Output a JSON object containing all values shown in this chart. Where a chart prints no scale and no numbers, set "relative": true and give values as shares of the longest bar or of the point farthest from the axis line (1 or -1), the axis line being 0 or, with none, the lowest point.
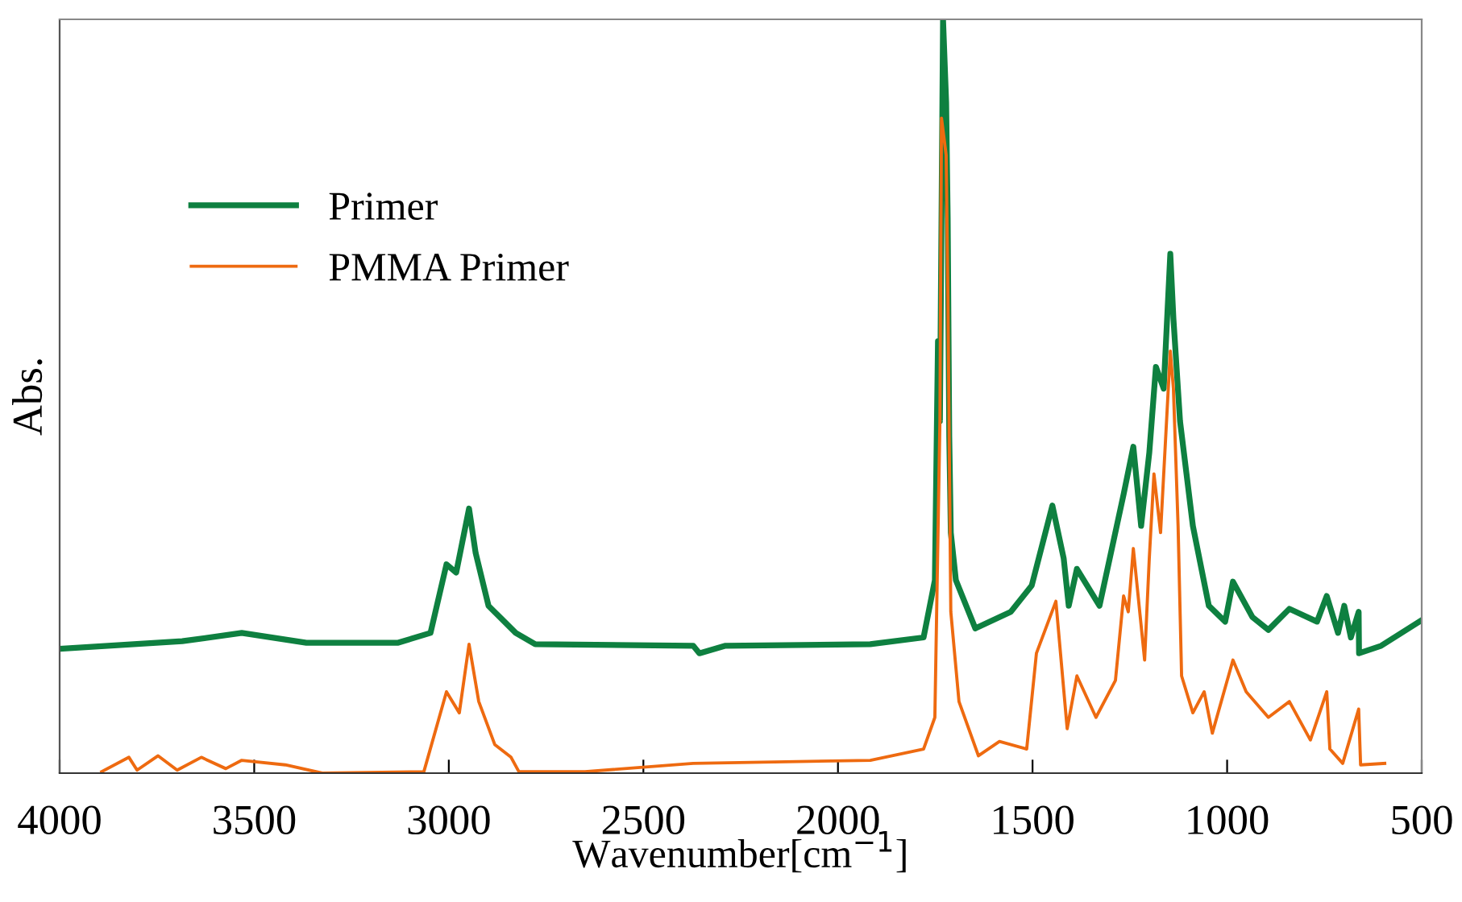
{
  "chart_data": {
    "type": "line",
    "xlabel": "Wavenumber[cm$^{−1}$]",
    "ylabel": "Abs.",
    "relative": true,
    "xlim": [
      4000,
      500
    ],
    "xticks": [
      4000,
      3500,
      3000,
      2500,
      2000,
      1500,
      1000,
      500
    ],
    "grid": false,
    "legend": "top left",
    "marker": "none",
    "line_style": "solid",
    "series": [
      {
        "name": "Primer",
        "color": "#0e8040",
        "x": [
          4000,
          3685,
          3532,
          3366,
          3130,
          3047,
          3006,
          2981,
          2948,
          2931,
          2898,
          2828,
          2778,
          2372,
          2356,
          2289,
          1917,
          1780,
          1751,
          1743,
          1738,
          1730,
          1722,
          1718,
          1714,
          1710,
          1697,
          1647,
          1556,
          1502,
          1449,
          1420,
          1407,
          1386,
          1328,
          1266,
          1241,
          1221,
          1200,
          1183,
          1163,
          1146,
          1138,
          1121,
          1088,
          1047,
          1005,
          985,
          935,
          894,
          840,
          769,
          744,
          715,
          699,
          682,
          662,
          661,
          604,
          500
        ],
        "values": [
          0.165,
          0.175,
          0.186,
          0.173,
          0.173,
          0.186,
          0.277,
          0.266,
          0.351,
          0.292,
          0.222,
          0.186,
          0.171,
          0.169,
          0.159,
          0.169,
          0.171,
          0.18,
          0.256,
          0.573,
          0.467,
          1.0,
          0.89,
          0.736,
          0.446,
          0.319,
          0.256,
          0.192,
          0.214,
          0.249,
          0.355,
          0.285,
          0.222,
          0.271,
          0.222,
          0.37,
          0.433,
          0.328,
          0.425,
          0.539,
          0.51,
          0.689,
          0.603,
          0.467,
          0.328,
          0.222,
          0.201,
          0.254,
          0.207,
          0.19,
          0.218,
          0.201,
          0.235,
          0.186,
          0.222,
          0.18,
          0.214,
          0.159,
          0.169,
          0.203
        ]
      },
      {
        "name": "PMMA Primer",
        "color": "#ee6a10",
        "x": [
          3892,
          3822,
          3801,
          3747,
          3698,
          3636,
          3573,
          3532,
          3420,
          3325,
          3064,
          3006,
          2973,
          2948,
          2923,
          2882,
          2840,
          2820,
          2650,
          2372,
          1917,
          1780,
          1751,
          1738,
          1734,
          1722,
          1718,
          1710,
          1689,
          1639,
          1585,
          1515,
          1490,
          1440,
          1411,
          1386,
          1337,
          1287,
          1266,
          1254,
          1241,
          1212,
          1200,
          1188,
          1171,
          1146,
          1138,
          1126,
          1117,
          1088,
          1059,
          1038,
          985,
          951,
          894,
          840,
          786,
          744,
          736,
          703,
          662,
          657,
          595
        ],
        "values": [
          0.002,
          0.021,
          0.004,
          0.023,
          0.004,
          0.021,
          0.006,
          0.017,
          0.011,
          0.0,
          0.002,
          0.108,
          0.08,
          0.171,
          0.095,
          0.038,
          0.021,
          0.002,
          0.002,
          0.013,
          0.017,
          0.032,
          0.074,
          0.467,
          0.869,
          0.82,
          0.658,
          0.214,
          0.095,
          0.023,
          0.042,
          0.032,
          0.159,
          0.228,
          0.059,
          0.129,
          0.074,
          0.123,
          0.235,
          0.214,
          0.298,
          0.15,
          0.285,
          0.397,
          0.319,
          0.56,
          0.51,
          0.328,
          0.129,
          0.08,
          0.108,
          0.053,
          0.15,
          0.108,
          0.074,
          0.095,
          0.044,
          0.108,
          0.032,
          0.013,
          0.085,
          0.011,
          0.013
        ]
      }
    ]
  }
}
